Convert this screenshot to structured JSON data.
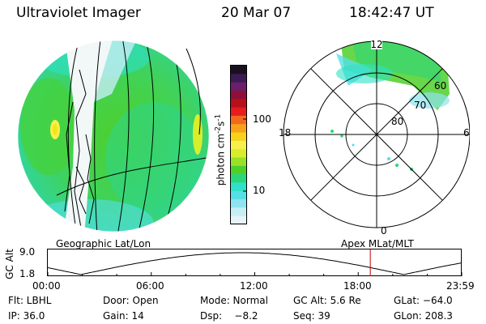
{
  "header": {
    "title": "Ultraviolet Imager",
    "date": "20 Mar 07",
    "time": "18:42:47 UT"
  },
  "colorbar": {
    "unit": "photon cm",
    "unit_sup1": "-2",
    "unit_mid": "s",
    "unit_sup2": "-1",
    "scale": "log",
    "ticks": [
      "100",
      "10"
    ],
    "colors": [
      "#1a0f20",
      "#3c1b55",
      "#6a1f6a",
      "#8e1036",
      "#b8101a",
      "#e61d1d",
      "#f2691e",
      "#f7a21a",
      "#f7d21a",
      "#f6f04a",
      "#d7ef2b",
      "#98e12a",
      "#4ed02a",
      "#2dd57a",
      "#2fe1c6",
      "#54e0e6",
      "#8fe3ef",
      "#c6eef5",
      "#e7f3f6"
    ]
  },
  "polar": {
    "labels": [
      "12",
      "60",
      "70",
      "80",
      "18",
      "6",
      "0"
    ]
  },
  "captions": {
    "left": "Geographic Lat/Lon",
    "right": "Apex  MLat/MLT"
  },
  "timeline": {
    "ylabel": "GC Alt",
    "ymax": "9.0",
    "ymin": "1.8",
    "ticks": [
      "00:00",
      "06:00",
      "12:00",
      "18:00",
      "23:59"
    ],
    "marker_time": "18:42"
  },
  "footer": {
    "flt": "Flt: LBHL",
    "door": "Door: Open",
    "mode": "Mode: Normal",
    "gc_alt": "GC Alt: 5.6 Re",
    "glat": "GLat: −64.0",
    "ip": "IP: 36.0",
    "gain": "Gain: 14",
    "dsp": "Dsp:    −8.2",
    "seq": "Seq: 39",
    "glon": "GLon: 208.3"
  }
}
